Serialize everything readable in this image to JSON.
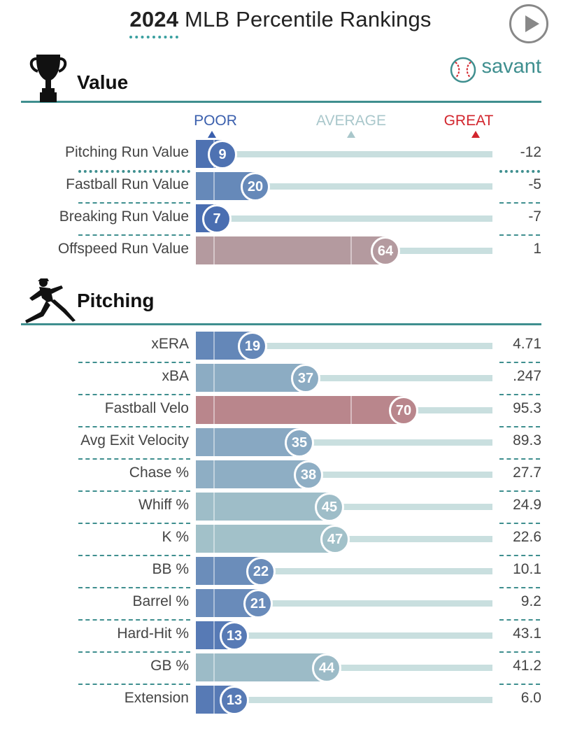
{
  "header": {
    "title_year": "2024",
    "title_rest": "MLB Percentile Rankings",
    "brand": "savant"
  },
  "scale": {
    "poor": "POOR",
    "average": "AVERAGE",
    "great": "GREAT"
  },
  "colors": {
    "poor": "#3a5fad",
    "great": "#d2252d",
    "average": "#a9c7cb",
    "section_rule": "#3f8f8f"
  },
  "chart_data": {
    "type": "bar",
    "orientation": "horizontal",
    "xlim": [
      0,
      100
    ],
    "sections": [
      {
        "title": "Value",
        "icon": "trophy-icon",
        "rows": [
          {
            "label": "Pitching Run Value",
            "percentile": 9,
            "value": "-12"
          },
          {
            "label": "Fastball Run Value",
            "percentile": 20,
            "value": "-5"
          },
          {
            "label": "Breaking Run Value",
            "percentile": 7,
            "value": "-7"
          },
          {
            "label": "Offspeed Run Value",
            "percentile": 64,
            "value": "1"
          }
        ]
      },
      {
        "title": "Pitching",
        "icon": "pitcher-icon",
        "rows": [
          {
            "label": "xERA",
            "percentile": 19,
            "value": "4.71"
          },
          {
            "label": "xBA",
            "percentile": 37,
            "value": ".247"
          },
          {
            "label": "Fastball Velo",
            "percentile": 70,
            "value": "95.3"
          },
          {
            "label": "Avg Exit Velocity",
            "percentile": 35,
            "value": "89.3"
          },
          {
            "label": "Chase %",
            "percentile": 38,
            "value": "27.7"
          },
          {
            "label": "Whiff %",
            "percentile": 45,
            "value": "24.9"
          },
          {
            "label": "K %",
            "percentile": 47,
            "value": "22.6"
          },
          {
            "label": "BB %",
            "percentile": 22,
            "value": "10.1"
          },
          {
            "label": "Barrel %",
            "percentile": 21,
            "value": "9.2"
          },
          {
            "label": "Hard-Hit %",
            "percentile": 13,
            "value": "43.1"
          },
          {
            "label": "GB %",
            "percentile": 44,
            "value": "41.2"
          },
          {
            "label": "Extension",
            "percentile": 13,
            "value": "6.0"
          }
        ]
      }
    ]
  }
}
